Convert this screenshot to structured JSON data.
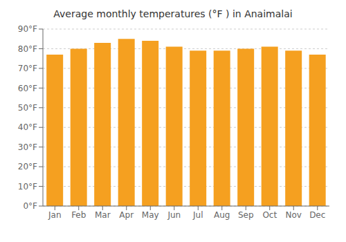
{
  "chart_data": {
    "type": "bar",
    "title": "Average monthly temperatures (°F ) in Anaimalai",
    "categories": [
      "Jan",
      "Feb",
      "Mar",
      "Apr",
      "May",
      "Jun",
      "Jul",
      "Aug",
      "Sep",
      "Oct",
      "Nov",
      "Dec"
    ],
    "values": [
      77,
      80,
      83,
      85,
      84,
      81,
      79,
      79,
      80,
      81,
      79,
      77
    ],
    "color": "#F5A020",
    "ylim": [
      0,
      90
    ],
    "yticks": [
      {
        "value": 0,
        "label": "0°F"
      },
      {
        "value": 10,
        "label": "10°F"
      },
      {
        "value": 20,
        "label": "20°F"
      },
      {
        "value": 30,
        "label": "30°F"
      },
      {
        "value": 40,
        "label": "40°F"
      },
      {
        "value": 50,
        "label": "50°F"
      },
      {
        "value": 60,
        "label": "60°F"
      },
      {
        "value": 70,
        "label": "70°F"
      },
      {
        "value": 80,
        "label": "80°F"
      },
      {
        "value": 90,
        "label": "90°F"
      }
    ],
    "grid": true
  }
}
